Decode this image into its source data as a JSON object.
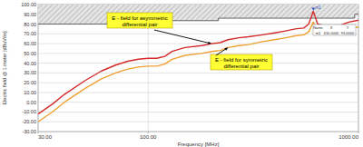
{
  "chart_data": {
    "type": "line",
    "x_label": "Frequency [MHz]",
    "y_label": "Electric field @ 1 meter [dBuV/m]",
    "log": "x",
    "grid": true,
    "xlim": [
      30,
      1000
    ],
    "ylim": [
      -30,
      100
    ],
    "xticks": [
      {
        "value": 30,
        "label": "30.00"
      },
      {
        "value": 100,
        "label": "100.00"
      },
      {
        "value": 1000,
        "label": "1000.00"
      }
    ],
    "yticks": [
      {
        "value": 100,
        "label": "100.00"
      },
      {
        "value": 90,
        "label": "90.00"
      },
      {
        "value": 80,
        "label": "80.00"
      },
      {
        "value": 70,
        "label": "70.00"
      },
      {
        "value": 60,
        "label": "60.00"
      },
      {
        "value": 50,
        "label": "50.00"
      },
      {
        "value": 40,
        "label": "40.00"
      },
      {
        "value": 30,
        "label": "30.00"
      },
      {
        "value": 20,
        "label": "20.00"
      },
      {
        "value": 10,
        "label": "10.00"
      },
      {
        "value": 0,
        "label": "0.00"
      },
      {
        "value": -10,
        "label": "-10.00"
      },
      {
        "value": -20,
        "label": "-20.00"
      },
      {
        "value": -30,
        "label": "-30.00"
      }
    ],
    "x": [
      30,
      35,
      40,
      50,
      60,
      70,
      80,
      90,
      100,
      110,
      120,
      130,
      150,
      180,
      200,
      220,
      240,
      270,
      300,
      350,
      400,
      450,
      500,
      550,
      580,
      610,
      640,
      700,
      750,
      800,
      900,
      1000
    ],
    "series": [
      {
        "color": "#d42a2a",
        "values": [
          -12,
          -2,
          8,
          22,
          32,
          38,
          42,
          44,
          45,
          45,
          47,
          52,
          56,
          58,
          60,
          61,
          64,
          66,
          67,
          69,
          71,
          73,
          75,
          76,
          80,
          93,
          80,
          78,
          76,
          78,
          82,
          84
        ]
      },
      {
        "color": "#f0a030",
        "values": [
          -20,
          -10,
          0,
          14,
          24,
          30,
          34,
          36,
          37,
          37,
          39,
          44,
          48,
          50,
          52,
          53,
          56,
          58,
          59,
          62,
          64,
          66,
          68,
          69,
          72,
          82,
          73,
          71,
          69,
          71,
          75,
          77
        ]
      }
    ],
    "limit_line": {
      "color": "#555555",
      "x": [
        30,
        88,
        88,
        216,
        216,
        960,
        960,
        1000
      ],
      "values": [
        80,
        80,
        83.5,
        83.5,
        86,
        86,
        90,
        90
      ]
    },
    "markers": [
      {
        "label": "m1",
        "x": 610,
        "y": 93
      }
    ],
    "marker_table_headers": [
      "Name",
      "X",
      "Y"
    ],
    "annotations": [
      {
        "text": [
          "E - field for asymmetric",
          "differential pair"
        ],
        "series": 0,
        "point": 14
      },
      {
        "text": [
          "E - field for symmetric",
          "differential pair"
        ],
        "series": 1,
        "point": 16
      }
    ]
  }
}
